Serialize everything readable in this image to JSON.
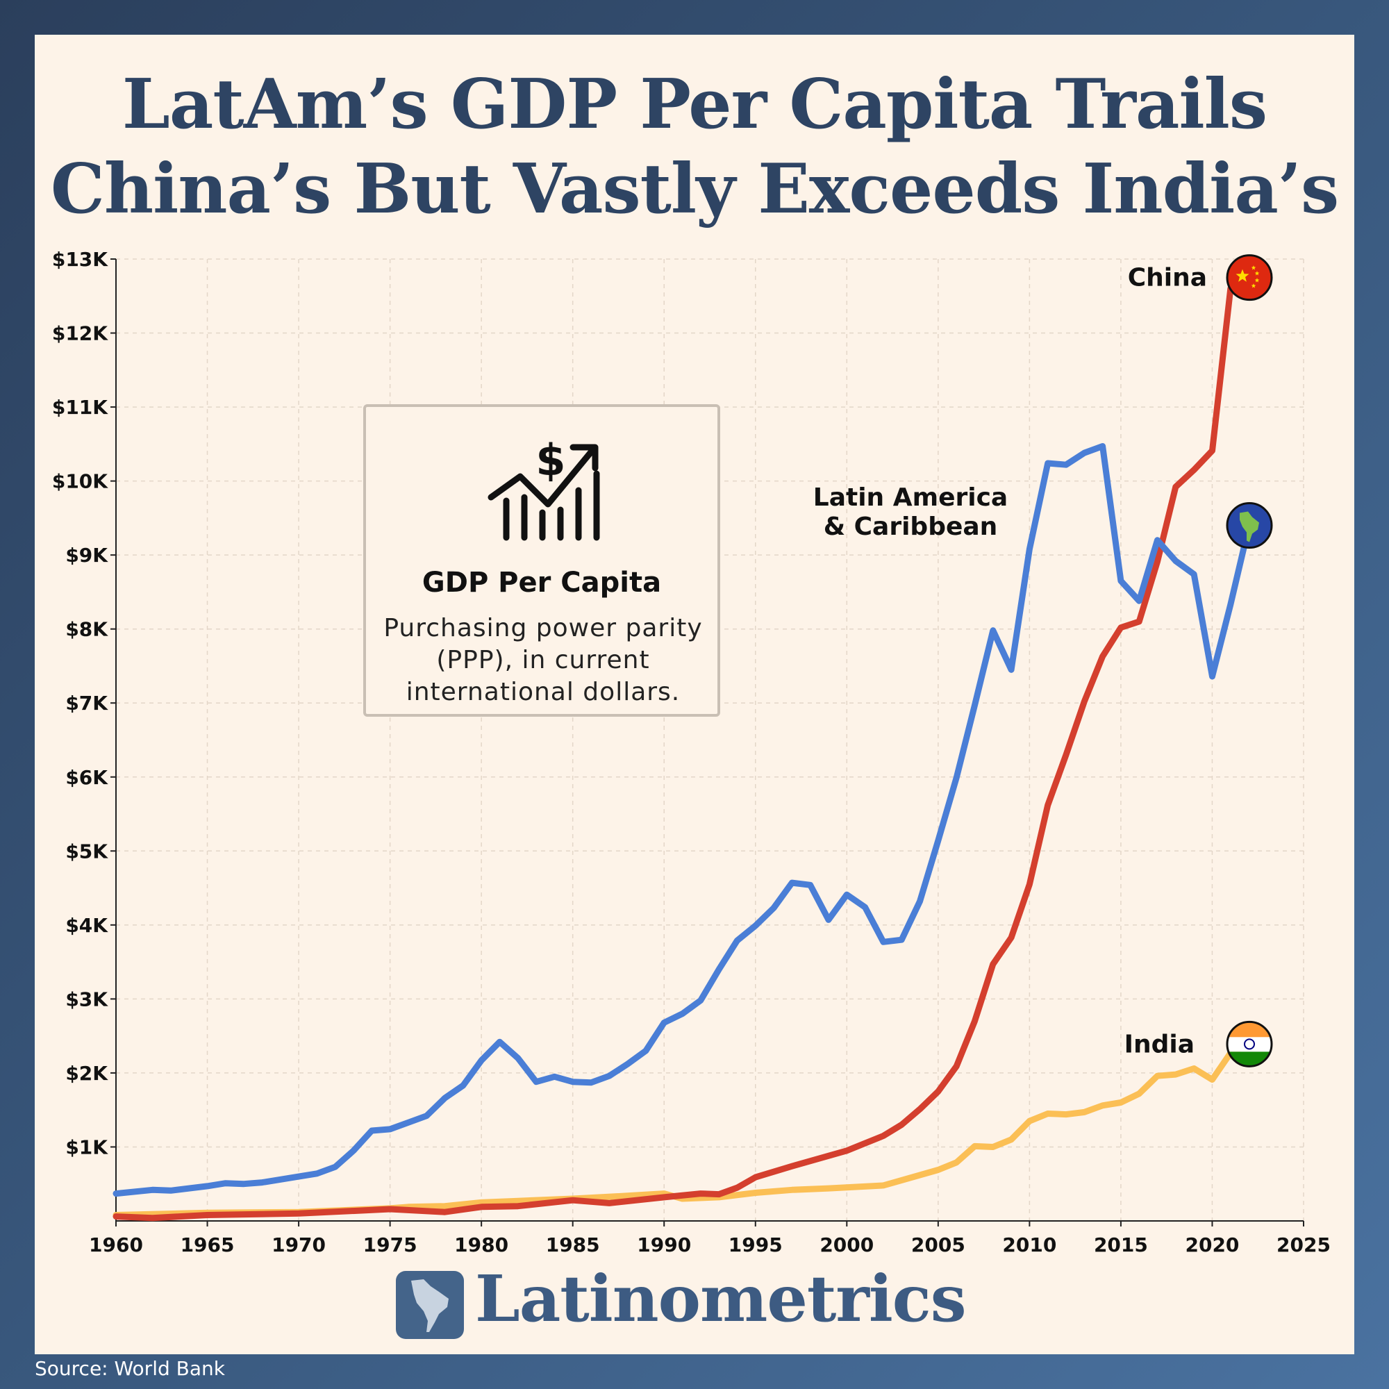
{
  "title": {
    "line1": "LatAm’s GDP Per Capita Trails",
    "line2": "China’s But Vastly Exceeds India’s"
  },
  "info_box": {
    "icon": "money-growth-chart-icon",
    "heading": "GDP Per Capita",
    "subtitle": "Purchasing power parity (PPP), in current international dollars."
  },
  "brand": {
    "name": "Latinometrics",
    "icon": "latin-america-map-icon"
  },
  "source": "Source: World Bank",
  "colors": {
    "china": "#d43f2e",
    "latam": "#4a7ed6",
    "india": "#fbbf55",
    "title": "#2e4463"
  },
  "chart_data": {
    "type": "line",
    "x_ticks": [
      1960,
      1965,
      1970,
      1975,
      1980,
      1985,
      1990,
      1995,
      2000,
      2005,
      2010,
      2015,
      2020,
      2025
    ],
    "y_ticks": [
      1000,
      2000,
      3000,
      4000,
      5000,
      6000,
      7000,
      8000,
      9000,
      10000,
      11000,
      12000,
      13000
    ],
    "y_tick_labels": [
      "$1K",
      "$2K",
      "$3K",
      "$4K",
      "$5K",
      "$6K",
      "$7K",
      "$8K",
      "$9K",
      "$10K",
      "$11K",
      "$12K",
      "$13K"
    ],
    "xlim": [
      1960,
      2025
    ],
    "ylim": [
      0,
      13000
    ],
    "grid": true,
    "series": [
      {
        "name": "China",
        "color": "#d43f2e",
        "icon": "china-flag-icon",
        "x": [
          1960,
          1962,
          1965,
          1970,
          1975,
          1978,
          1980,
          1982,
          1985,
          1987,
          1990,
          1992,
          1993,
          1994,
          1995,
          1997,
          2000,
          2002,
          2003,
          2004,
          2005,
          2006,
          2007,
          2008,
          2009,
          2010,
          2011,
          2012,
          2013,
          2014,
          2015,
          2016,
          2017,
          2018,
          2019,
          2020,
          2021,
          2022
        ],
        "y": [
          60,
          40,
          80,
          100,
          160,
          120,
          190,
          200,
          280,
          240,
          320,
          370,
          360,
          450,
          590,
          740,
          950,
          1150,
          1300,
          1510,
          1750,
          2090,
          2700,
          3470,
          3830,
          4550,
          5620,
          6300,
          7020,
          7630,
          8020,
          8100,
          8910,
          9920,
          10150,
          10410,
          12600,
          12750
        ]
      },
      {
        "name": "Latin America & Caribbean",
        "color": "#4a7ed6",
        "icon": "globe-americas-icon",
        "x": [
          1960,
          1962,
          1963,
          1965,
          1966,
          1967,
          1968,
          1970,
          1971,
          1972,
          1973,
          1974,
          1975,
          1976,
          1977,
          1978,
          1979,
          1980,
          1981,
          1982,
          1983,
          1984,
          1985,
          1986,
          1987,
          1988,
          1989,
          1990,
          1991,
          1992,
          1993,
          1994,
          1995,
          1996,
          1997,
          1998,
          1999,
          2000,
          2001,
          2002,
          2003,
          2004,
          2005,
          2006,
          2007,
          2008,
          2009,
          2010,
          2011,
          2012,
          2013,
          2014,
          2015,
          2016,
          2017,
          2018,
          2019,
          2020,
          2021,
          2022
        ],
        "y": [
          370,
          420,
          410,
          470,
          510,
          500,
          520,
          600,
          640,
          730,
          950,
          1220,
          1240,
          1330,
          1420,
          1660,
          1830,
          2170,
          2420,
          2200,
          1880,
          1950,
          1880,
          1870,
          1960,
          2120,
          2300,
          2680,
          2800,
          2980,
          3400,
          3790,
          3990,
          4230,
          4570,
          4540,
          4070,
          4410,
          4240,
          3770,
          3800,
          4320,
          5140,
          5990,
          6970,
          7980,
          7450,
          9080,
          10240,
          10220,
          10380,
          10470,
          8650,
          8380,
          9200,
          8920,
          8740,
          7360,
          8330,
          9380
        ]
      },
      {
        "name": "India",
        "color": "#fbbf55",
        "icon": "india-flag-icon",
        "x": [
          1960,
          1965,
          1970,
          1975,
          1976,
          1978,
          1980,
          1982,
          1985,
          1988,
          1990,
          1991,
          1993,
          1995,
          1997,
          1999,
          2002,
          2005,
          2006,
          2007,
          2008,
          2009,
          2010,
          2011,
          2012,
          2013,
          2014,
          2015,
          2016,
          2017,
          2018,
          2019,
          2020,
          2021,
          2022
        ],
        "y": [
          80,
          110,
          120,
          170,
          190,
          200,
          250,
          270,
          300,
          340,
          370,
          300,
          320,
          380,
          420,
          440,
          480,
          690,
          790,
          1010,
          1000,
          1100,
          1350,
          1450,
          1440,
          1470,
          1560,
          1600,
          1720,
          1960,
          1980,
          2060,
          1910,
          2270,
          2390
        ]
      }
    ]
  }
}
